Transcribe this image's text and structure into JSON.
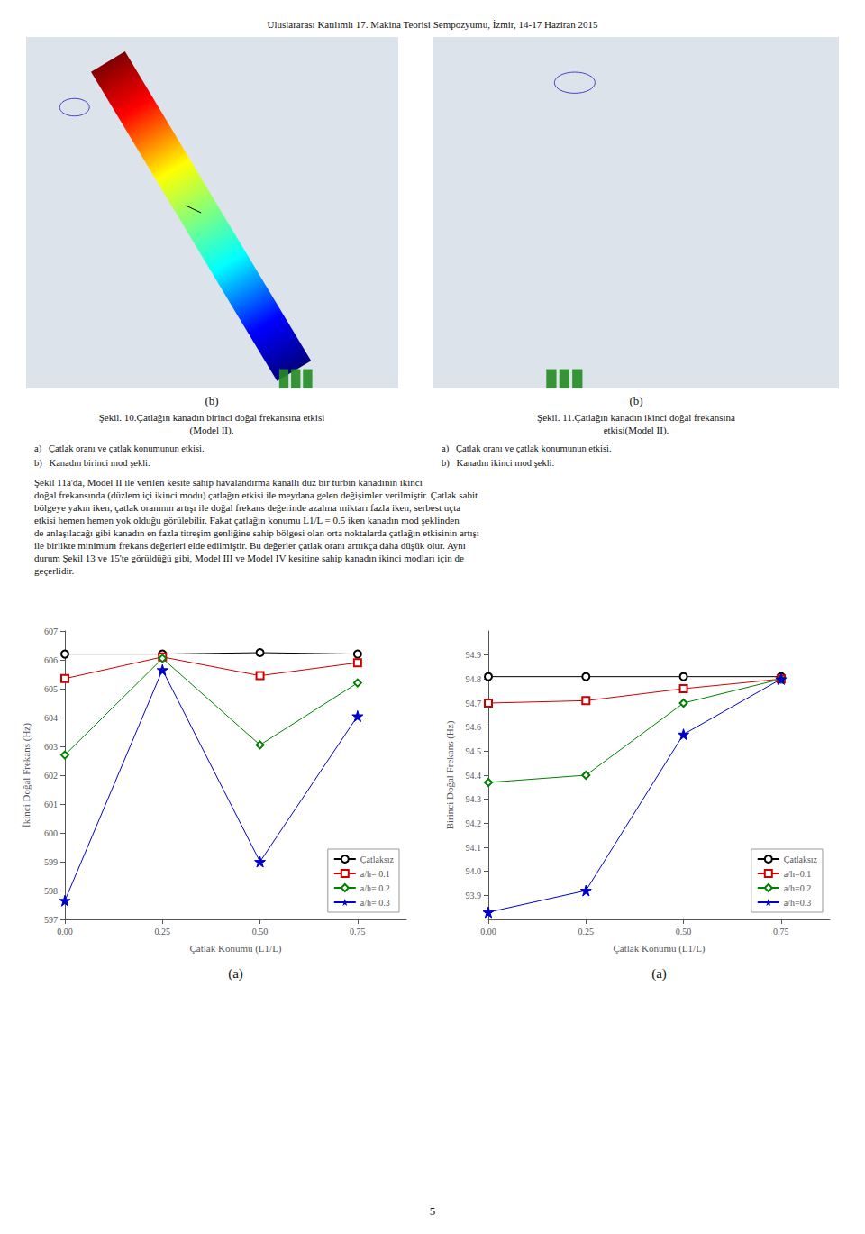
{
  "title": "Uluslararası Katılımlı 17. Makina Teorisi Sempozyumu, İzmir, 14-17 Haziran 2015",
  "annotations": [
    "Şekil 11a'da, Model II ile verilen kesite sahip havalandırma kanallı düz bir türbin kanadının ikinci\ndoğal frekansında (düzlem içi ikinci modu) çatlağın etkisi ile meydana gelen değişimler verilmiştir. Çatlak sabit\nbölgeye yakın iken, çatlak oranının artışı ile doğal frekans değerinde azalma miktarı fazla iken, serbest uçta\netkisi hemen hemen yok olduğu görülebilir. Fakat çatlağın konumu L1/L = 0.5 iken kanadın mod şeklinden\nde anlaşılacağı gibi kanadın en fazla titreşim genliğine sahip bölgesi olan orta noktalarda çatlağın etkisinin artışı\nile birlikte minimum frekans değerleri elde edilmiştir. Bu değerler çatlak oranı arttıkça daha düşük olur. Aynı\ndurum Şekil 13 ve 15'te görüldüğü gibi, Model III ve Model IV kesitine sahip kanadın ikinci modları için de\ngeçerlidir.",
    "5"
  ],
  "chart_data": [
    {
      "type": "line",
      "annotations": [
        "(b)",
        "Şekil. 10.Çatlağın kanadın birinci doğal frekansına etkisi\n(Model II).",
        "a)   Çatlak oranı ve çatlak konumunun etkisi.",
        "b)   Kanadın birinci mod şekli.",
        "(a)"
      ],
      "xlabel": "Çatlak Konumu (L1/L)",
      "ylabel": "İkinci Doğal Frekans (Hz)",
      "xlim": [
        0,
        0.875
      ],
      "xticks": [
        {
          "value": 0,
          "label": "0.00"
        },
        0.25,
        {
          "value": 0.5,
          "label": "0.50"
        },
        0.75
      ],
      "ylim": [
        597,
        607
      ],
      "yticks": [
        597,
        598,
        599,
        600,
        601,
        602,
        603,
        604,
        605,
        606,
        607
      ],
      "grid": false,
      "legend": "lower right",
      "x": [
        0,
        0.25,
        0.5,
        0.75
      ],
      "series": [
        {
          "name": "Çatlaksız",
          "color": "#000000",
          "marker": "circle",
          "line_style": "solid",
          "values": [
            606.2,
            606.2,
            606.25,
            606.2
          ]
        },
        {
          "name": "a/h= 0.1",
          "color": "#cc0000",
          "marker": "square",
          "line_style": "solid",
          "values": [
            605.35,
            606.1,
            605.45,
            605.9
          ]
        },
        {
          "name": "a/h= 0.2",
          "color": "#008000",
          "marker": "diamond",
          "line_style": "solid",
          "values": [
            602.7,
            606.05,
            603.05,
            605.2
          ]
        },
        {
          "name": "a/h= 0.3",
          "color": "#0000cc",
          "marker": "star",
          "line_style": "solid",
          "values": [
            597.65,
            605.65,
            599.0,
            604.05
          ]
        }
      ]
    },
    {
      "type": "line",
      "annotations": [
        "(b)",
        "Şekil. 11.Çatlağın kanadın ikinci doğal frekansına\netkisi(Model II).",
        "a)   Çatlak oranı ve çatlak konumunun etkisi.",
        "b)   Kanadın ikinci mod şekli.",
        "(a)"
      ],
      "xlabel": "Çatlak Konumu (L1/L)",
      "ylabel": "Birinci Doğal Frekans (Hz)",
      "xlim": [
        0,
        0.875
      ],
      "xticks": [
        {
          "value": 0,
          "label": "0.00"
        },
        0.25,
        {
          "value": 0.5,
          "label": "0.50"
        },
        0.75
      ],
      "ylim": [
        93.8,
        95.0
      ],
      "yticks": [
        93.9,
        {
          "value": 94.0,
          "label": "94.0"
        },
        94.1,
        94.2,
        94.3,
        94.4,
        94.5,
        94.6,
        94.7,
        94.8,
        94.9
      ],
      "grid": false,
      "legend": "lower right",
      "x": [
        0,
        0.25,
        0.5,
        0.75
      ],
      "series": [
        {
          "name": "Çatlaksız",
          "color": "#000000",
          "marker": "circle",
          "line_style": "solid",
          "values": [
            94.81,
            94.81,
            94.81,
            94.81
          ]
        },
        {
          "name": "a/h=0.1",
          "color": "#cc0000",
          "marker": "square",
          "line_style": "solid",
          "values": [
            94.7,
            94.71,
            94.76,
            94.8
          ]
        },
        {
          "name": "a/h=0.2",
          "color": "#008000",
          "marker": "diamond",
          "line_style": "solid",
          "values": [
            94.37,
            94.4,
            94.7,
            94.8
          ]
        },
        {
          "name": "a/h=0.3",
          "color": "#0000cc",
          "marker": "star",
          "line_style": "solid",
          "values": [
            93.83,
            93.92,
            94.57,
            94.8
          ]
        }
      ]
    }
  ]
}
